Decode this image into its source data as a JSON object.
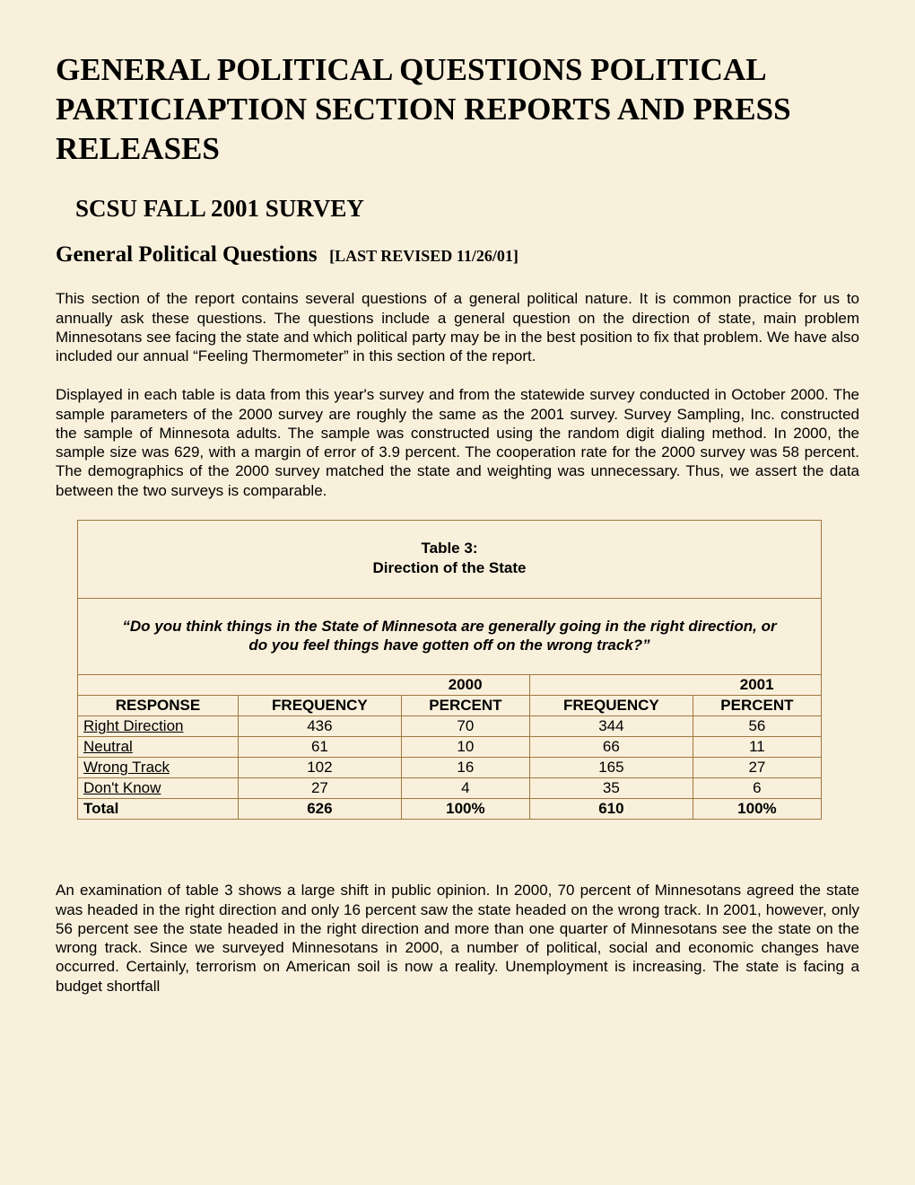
{
  "title": "GENERAL POLITICAL QUESTIONS POLITICAL PARTICIAPTION SECTION REPORTS AND PRESS RELEASES",
  "subtitle": "SCSU FALL 2001 SURVEY",
  "section_heading": "General Political Questions",
  "revision_note": "[LAST REVISED 11/26/01]",
  "intro_para_1": "This section of the report contains several questions of a general political nature.  It is common practice for us to annually ask these questions.  The questions include a general question on the direction of state, main problem Minnesotans see facing the state and which political party may be in the best position to fix that problem.  We have also included our annual “Feeling Thermometer” in this section of the report.",
  "intro_para_2": "Displayed in each table is data from this year's survey and from the statewide survey conducted in October 2000.  The sample parameters of the 2000 survey are roughly the same as the 2001 survey.  Survey Sampling, Inc. constructed the sample of Minnesota adults.  The sample was constructed using the random digit dialing method.  In 2000, the sample size was 629, with a margin of error of 3.9 percent.  The cooperation rate for the 2000 survey was 58 percent.  The demographics of the 2000 survey matched the state and weighting was unnecessary.  Thus, we assert the data between the two surveys is comparable.",
  "table": {
    "title_line1": "Table 3:",
    "title_line2": "Direction of the State",
    "question": "“Do you think things in the State of Minnesota are generally going in the right direction, or do you feel things have gotten off on the wrong track?”",
    "year_headers": [
      "2000",
      "2001"
    ],
    "column_headers": [
      "RESPONSE",
      "FREQUENCY",
      "PERCENT",
      "FREQUENCY",
      "PERCENT"
    ],
    "rows": [
      {
        "label": "Right Direction",
        "f2000": "436",
        "p2000": "70",
        "f2001": "344",
        "p2001": "56"
      },
      {
        "label": "Neutral",
        "f2000": "61",
        "p2000": "10",
        "f2001": "66",
        "p2001": "11"
      },
      {
        "label": "Wrong Track",
        "f2000": "102",
        "p2000": "16",
        "f2001": "165",
        "p2001": "27"
      },
      {
        "label": "Don't Know",
        "f2000": "27",
        "p2000": "4",
        "f2001": "35",
        "p2001": "6"
      }
    ],
    "total": {
      "label": "Total",
      "f2000": "626",
      "p2000": "100%",
      "f2001": "610",
      "p2001": "100%"
    },
    "border_color": "#a07840"
  },
  "analysis_para": "An examination of table 3 shows a large shift in public opinion.  In 2000, 70 percent of Minnesotans agreed the state was headed in the right direction and only 16 percent saw the state headed on the wrong track.  In 2001, however, only 56 percent see the state headed in the right direction and more than one quarter of Minnesotans see the state on the wrong track.  Since we surveyed Minnesotans in 2000, a number of political, social and economic changes have occurred.  Certainly, terrorism on American soil is now a reality.  Unemployment is increasing.  The state is facing a budget shortfall",
  "colors": {
    "background": "#f9f0db",
    "text": "#000000"
  }
}
